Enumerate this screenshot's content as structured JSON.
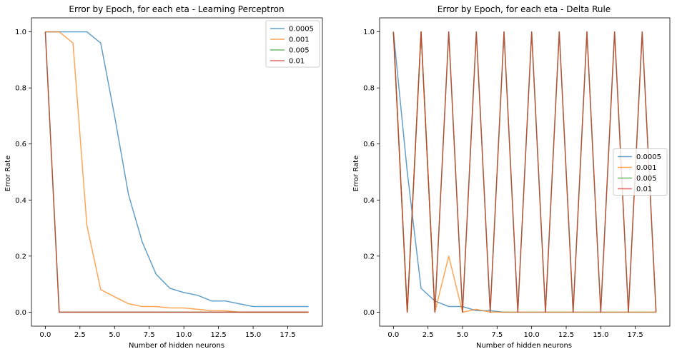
{
  "chart_data": [
    {
      "type": "line",
      "title": "Error by Epoch, for each eta - Learning Perceptron",
      "xlabel": "Number of hidden neurons",
      "ylabel": "Error Rate",
      "xlim": [
        -1,
        20
      ],
      "ylim": [
        -0.05,
        1.05
      ],
      "xticks": [
        0.0,
        2.5,
        5.0,
        7.5,
        10.0,
        12.5,
        15.0,
        17.5
      ],
      "xtick_labels": [
        "0.0",
        "2.5",
        "5.0",
        "7.5",
        "10.0",
        "12.5",
        "15.0",
        "17.5"
      ],
      "yticks": [
        0.0,
        0.2,
        0.4,
        0.6,
        0.8,
        1.0
      ],
      "ytick_labels": [
        "0.0",
        "0.2",
        "0.4",
        "0.6",
        "0.8",
        "1.0"
      ],
      "legend_position": "top-right",
      "x": [
        0,
        1,
        2,
        3,
        4,
        5,
        6,
        7,
        8,
        9,
        10,
        11,
        12,
        13,
        14,
        15,
        16,
        17,
        18,
        19
      ],
      "series": [
        {
          "name": "0.0005",
          "color": "#1f77b4",
          "values": [
            1.0,
            1.0,
            1.0,
            1.0,
            0.96,
            0.7,
            0.42,
            0.25,
            0.135,
            0.085,
            0.07,
            0.06,
            0.04,
            0.04,
            0.03,
            0.02,
            0.02,
            0.02,
            0.02,
            0.02
          ]
        },
        {
          "name": "0.001",
          "color": "#ff7f0e",
          "values": [
            1.0,
            1.0,
            0.96,
            0.31,
            0.08,
            0.055,
            0.03,
            0.02,
            0.02,
            0.015,
            0.015,
            0.01,
            0.005,
            0.005,
            0.0,
            0.0,
            0.0,
            0.0,
            0.0,
            0.0
          ]
        },
        {
          "name": "0.005",
          "color": "#2ca02c",
          "values": [
            1.0,
            0.0,
            0.0,
            0.0,
            0.0,
            0.0,
            0.0,
            0.0,
            0.0,
            0.0,
            0.0,
            0.0,
            0.0,
            0.0,
            0.0,
            0.0,
            0.0,
            0.0,
            0.0,
            0.0
          ]
        },
        {
          "name": "0.01",
          "color": "#d62728",
          "values": [
            1.0,
            0.0,
            0.0,
            0.0,
            0.0,
            0.0,
            0.0,
            0.0,
            0.0,
            0.0,
            0.0,
            0.0,
            0.0,
            0.0,
            0.0,
            0.0,
            0.0,
            0.0,
            0.0,
            0.0
          ]
        }
      ]
    },
    {
      "type": "line",
      "title": "Error by Epoch, for each eta - Delta Rule",
      "xlabel": "Number of hidden neurons",
      "ylabel": "Error Rate",
      "xlim": [
        -1,
        20
      ],
      "ylim": [
        -0.05,
        1.05
      ],
      "xticks": [
        0.0,
        2.5,
        5.0,
        7.5,
        10.0,
        12.5,
        15.0,
        17.5
      ],
      "xtick_labels": [
        "0.0",
        "2.5",
        "5.0",
        "7.5",
        "10.0",
        "12.5",
        "15.0",
        "17.5"
      ],
      "yticks": [
        0.0,
        0.2,
        0.4,
        0.6,
        0.8,
        1.0
      ],
      "ytick_labels": [
        "0.0",
        "0.2",
        "0.4",
        "0.6",
        "0.8",
        "1.0"
      ],
      "legend_position": "center-right",
      "x": [
        0,
        1,
        2,
        3,
        4,
        5,
        6,
        7,
        8,
        9,
        10,
        11,
        12,
        13,
        14,
        15,
        16,
        17,
        18,
        19
      ],
      "series": [
        {
          "name": "0.0005",
          "color": "#1f77b4",
          "values": [
            1.0,
            0.5,
            0.085,
            0.04,
            0.02,
            0.02,
            0.005,
            0.005,
            0.0,
            0.0,
            0.0,
            0.0,
            0.0,
            0.0,
            0.0,
            0.0,
            0.0,
            0.0,
            0.0,
            0.0
          ]
        },
        {
          "name": "0.001",
          "color": "#ff7f0e",
          "values": [
            1.0,
            0.0,
            1.0,
            0.0,
            0.2,
            0.0,
            0.01,
            0.0,
            0.0,
            0.0,
            0.0,
            0.0,
            0.0,
            0.0,
            0.0,
            0.0,
            0.0,
            0.0,
            0.0,
            0.0
          ]
        },
        {
          "name": "0.005",
          "color": "#2ca02c",
          "values": [
            1.0,
            0.0,
            1.0,
            0.0,
            1.0,
            0.0,
            1.0,
            0.0,
            1.0,
            0.0,
            1.0,
            0.0,
            1.0,
            0.0,
            1.0,
            0.0,
            1.0,
            0.0,
            1.0,
            0.0
          ]
        },
        {
          "name": "0.01",
          "color": "#d62728",
          "values": [
            1.0,
            0.0,
            1.0,
            0.0,
            1.0,
            0.0,
            1.0,
            0.0,
            1.0,
            0.0,
            1.0,
            0.0,
            1.0,
            0.0,
            1.0,
            0.0,
            1.0,
            0.0,
            1.0,
            0.0
          ]
        }
      ]
    }
  ]
}
